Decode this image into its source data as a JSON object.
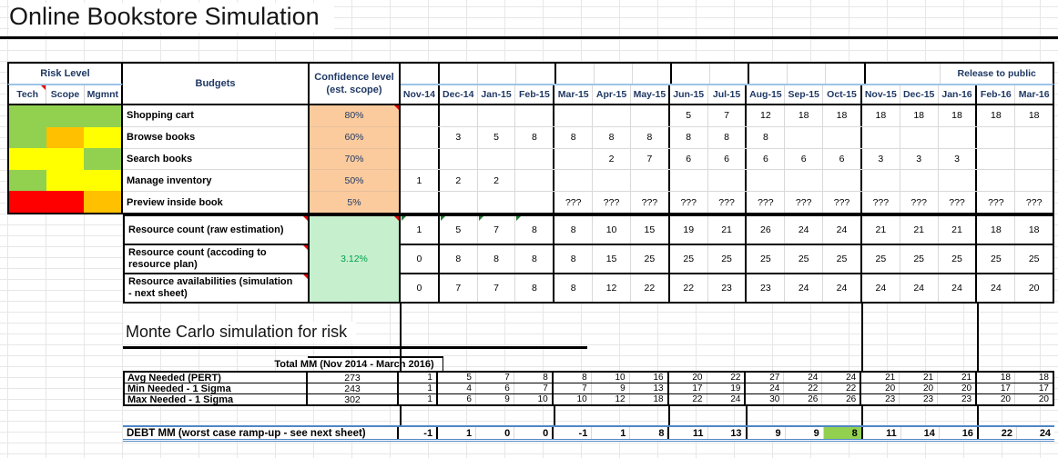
{
  "title": "Online Bookstore Simulation",
  "months": [
    "Nov-14",
    "Dec-14",
    "Jan-15",
    "Feb-15",
    "Mar-15",
    "Apr-15",
    "May-15",
    "Jun-15",
    "Jul-15",
    "Aug-15",
    "Sep-15",
    "Oct-15",
    "Nov-15",
    "Dec-15",
    "Jan-16",
    "Feb-16",
    "Mar-16"
  ],
  "release_banner": "Release to public",
  "risk": {
    "header": "Risk Level",
    "columns": [
      "Tech",
      "Scope",
      "Mgmnt"
    ]
  },
  "budgets_header": "Budgets",
  "confidence_header": "Confidence level (est. scope)",
  "features": [
    {
      "name": "Shopping cart",
      "confidence": "80%",
      "comment_flag": "true",
      "risk": [
        "green",
        "green",
        "green"
      ],
      "values": [
        "",
        "",
        "",
        "",
        "",
        "",
        "",
        "5",
        "7",
        "12",
        "18",
        "18",
        "18",
        "18",
        "18",
        "18",
        "18"
      ]
    },
    {
      "name": "Browse books",
      "confidence": "60%",
      "risk": [
        "green",
        "orange",
        "yellow"
      ],
      "values": [
        "",
        "3",
        "5",
        "8",
        "8",
        "8",
        "8",
        "8",
        "8",
        "8",
        "",
        "",
        "",
        "",
        "",
        "",
        ""
      ]
    },
    {
      "name": "Search books",
      "confidence": "70%",
      "risk": [
        "yellow",
        "yellow",
        "green"
      ],
      "values": [
        "",
        "",
        "",
        "",
        "",
        "2",
        "7",
        "6",
        "6",
        "6",
        "6",
        "6",
        "3",
        "3",
        "3",
        "",
        ""
      ]
    },
    {
      "name": "Manage inventory",
      "confidence": "50%",
      "risk": [
        "green",
        "yellow",
        "yellow"
      ],
      "values": [
        "1",
        "2",
        "2",
        "",
        "",
        "",
        "",
        "",
        "",
        "",
        "",
        "",
        "",
        "",
        "",
        "",
        ""
      ]
    },
    {
      "name": "Preview inside book",
      "confidence": "5%",
      "risk": [
        "red",
        "red",
        "orange"
      ],
      "values": [
        "",
        "",
        "",
        "",
        "???",
        "???",
        "???",
        "???",
        "???",
        "???",
        "???",
        "???",
        "???",
        "???",
        "???",
        "???",
        "???"
      ]
    }
  ],
  "resources": {
    "confidence": "3.12%",
    "green_flag_cells": [
      0,
      1,
      2,
      3
    ],
    "rows": [
      {
        "name": "Resource count (raw estimation)",
        "values": [
          1,
          5,
          7,
          8,
          8,
          10,
          15,
          19,
          21,
          26,
          24,
          24,
          21,
          21,
          21,
          18,
          18
        ]
      },
      {
        "name": "Resource count (accoding to resource plan)",
        "values": [
          0,
          8,
          8,
          8,
          8,
          15,
          25,
          25,
          25,
          25,
          25,
          25,
          25,
          25,
          25,
          25,
          25
        ]
      },
      {
        "name": "Resource availabilities (simulation - next sheet)",
        "values": [
          0,
          7,
          7,
          8,
          8,
          12,
          22,
          22,
          23,
          23,
          24,
          24,
          24,
          24,
          24,
          24,
          20
        ]
      }
    ]
  },
  "monte_carlo": {
    "title": "Monte Carlo simulation for risk",
    "total_header": "Total MM (Nov 2014 - March 2016)",
    "rows": [
      {
        "name": "Avg Needed (PERT)",
        "total": 273,
        "values": [
          1,
          5,
          7,
          8,
          8,
          10,
          16,
          20,
          22,
          27,
          24,
          24,
          21,
          21,
          21,
          18,
          18
        ]
      },
      {
        "name": "Min Needed - 1 Sigma",
        "total": 243,
        "values": [
          1,
          4,
          6,
          7,
          7,
          9,
          13,
          17,
          19,
          24,
          22,
          22,
          20,
          20,
          20,
          17,
          17
        ]
      },
      {
        "name": "Max Needed - 1 Sigma",
        "total": 302,
        "values": [
          1,
          6,
          9,
          10,
          10,
          12,
          18,
          22,
          24,
          30,
          26,
          26,
          23,
          23,
          23,
          20,
          20
        ]
      }
    ]
  },
  "debt": {
    "label": "DEBT MM (worst case ramp-up - see next sheet)",
    "values": [
      -1,
      1,
      0,
      0,
      -1,
      1,
      8,
      11,
      13,
      9,
      9,
      8,
      11,
      14,
      16,
      22,
      24
    ],
    "highlight_index": 11
  },
  "colors": {
    "risk_green": "#92D050",
    "risk_yellow": "#FFFF00",
    "risk_orange": "#FFC000",
    "risk_red": "#FF0000",
    "confidence_peach": "#FBCB9E",
    "confidence_green_bg": "#C6EFCE",
    "confidence_green_text": "#00A14B",
    "header_navy": "#1F3864",
    "header_blue_line": "#9DC3E6",
    "debt_border_blue": "#4F86C6",
    "debt_highlight_green": "#92D050",
    "gridline": "#D9D9D9"
  }
}
